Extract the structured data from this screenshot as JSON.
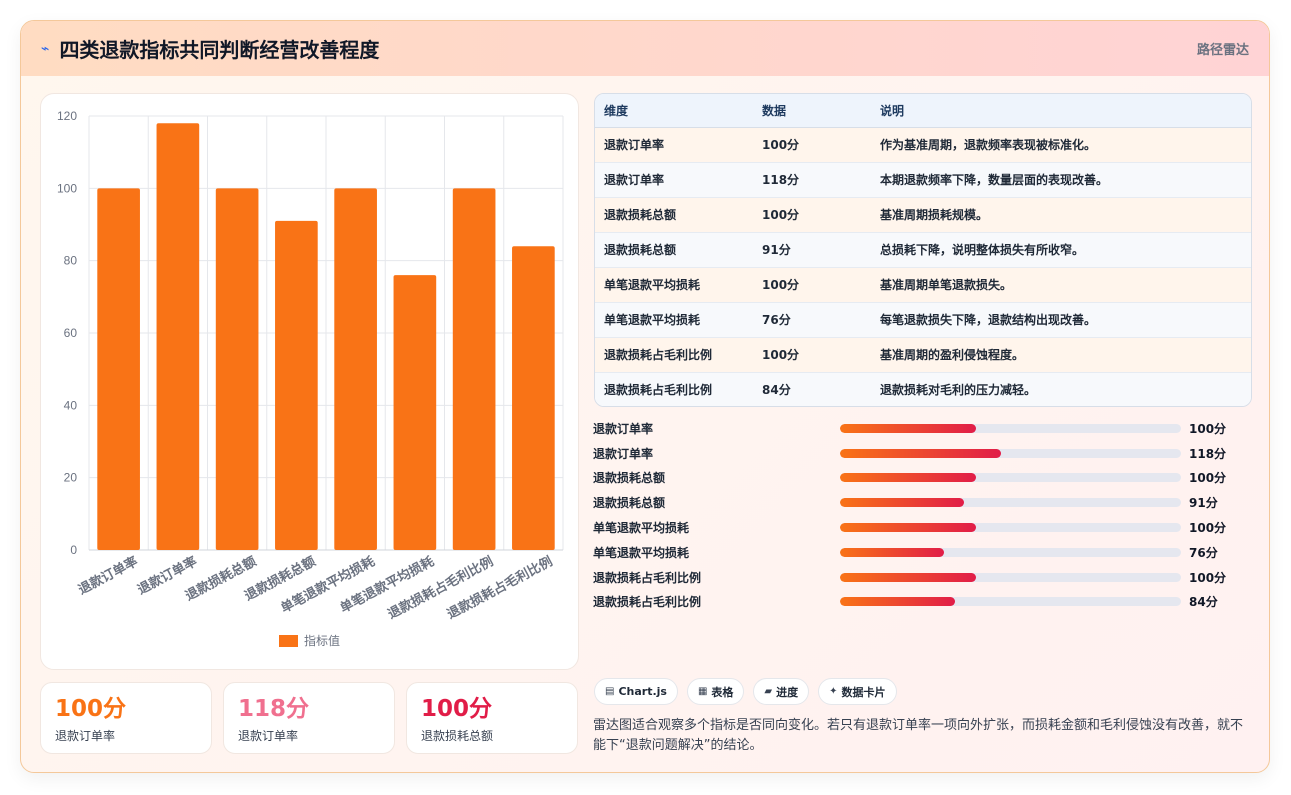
{
  "header": {
    "icon": "sparkle-icon",
    "title": "四类退款指标共同判断经营改善程度",
    "tag": "路径雷达"
  },
  "chart_data": {
    "type": "bar",
    "categories": [
      "退款订单率",
      "退款订单率",
      "退款损耗总额",
      "退款损耗总额",
      "单笔退款平均损耗",
      "单笔退款平均损耗",
      "退款损耗占毛利比例",
      "退款损耗占毛利比例"
    ],
    "series": [
      {
        "name": "指标值",
        "values": [
          100,
          118,
          100,
          91,
          100,
          76,
          100,
          84
        ],
        "color": "#f97316"
      }
    ],
    "yticks": [
      0,
      20,
      40,
      60,
      80,
      100,
      120
    ],
    "ylim": [
      0,
      120
    ],
    "grid": true,
    "legend": "bottom"
  },
  "table": {
    "headers": [
      "维度",
      "数据",
      "说明"
    ],
    "rows": [
      [
        "退款订单率",
        "100分",
        "作为基准周期，退款频率表现被标准化。"
      ],
      [
        "退款订单率",
        "118分",
        "本期退款频率下降，数量层面的表现改善。"
      ],
      [
        "退款损耗总额",
        "100分",
        "基准周期损耗规模。"
      ],
      [
        "退款损耗总额",
        "91分",
        "总损耗下降，说明整体损失有所收窄。"
      ],
      [
        "单笔退款平均损耗",
        "100分",
        "基准周期单笔退款损失。"
      ],
      [
        "单笔退款平均损耗",
        "76分",
        "每笔退款损失下降，退款结构出现改善。"
      ],
      [
        "退款损耗占毛利比例",
        "100分",
        "基准周期的盈利侵蚀程度。"
      ],
      [
        "退款损耗占毛利比例",
        "84分",
        "退款损耗对毛利的压力减轻。"
      ]
    ]
  },
  "progress": [
    {
      "label": "退款订单率",
      "value": 100,
      "text": "100分"
    },
    {
      "label": "退款订单率",
      "value": 118,
      "text": "118分"
    },
    {
      "label": "退款损耗总额",
      "value": 100,
      "text": "100分"
    },
    {
      "label": "退款损耗总额",
      "value": 91,
      "text": "91分"
    },
    {
      "label": "单笔退款平均损耗",
      "value": 100,
      "text": "100分"
    },
    {
      "label": "单笔退款平均损耗",
      "value": 76,
      "text": "76分"
    },
    {
      "label": "退款损耗占毛利比例",
      "value": 100,
      "text": "100分"
    },
    {
      "label": "退款损耗占毛利比例",
      "value": 84,
      "text": "84分"
    }
  ],
  "progress_max": 250,
  "kpis": [
    {
      "value": "100分",
      "label": "退款订单率",
      "color": "#f97316"
    },
    {
      "value": "118分",
      "label": "退款订单率",
      "color": "#f0708f"
    },
    {
      "value": "100分",
      "label": "退款损耗总额",
      "color": "#e11d48"
    }
  ],
  "chips": [
    {
      "icon": "chart-icon",
      "label": "Chart.js"
    },
    {
      "icon": "table-icon",
      "label": "表格"
    },
    {
      "icon": "progress-icon",
      "label": "进度"
    },
    {
      "icon": "card-icon",
      "label": "数据卡片"
    }
  ],
  "note": "雷达图适合观察多个指标是否同向变化。若只有退款订单率一项向外扩张，而损耗金额和毛利侵蚀没有改善，就不能下“退款问题解决”的结论。"
}
